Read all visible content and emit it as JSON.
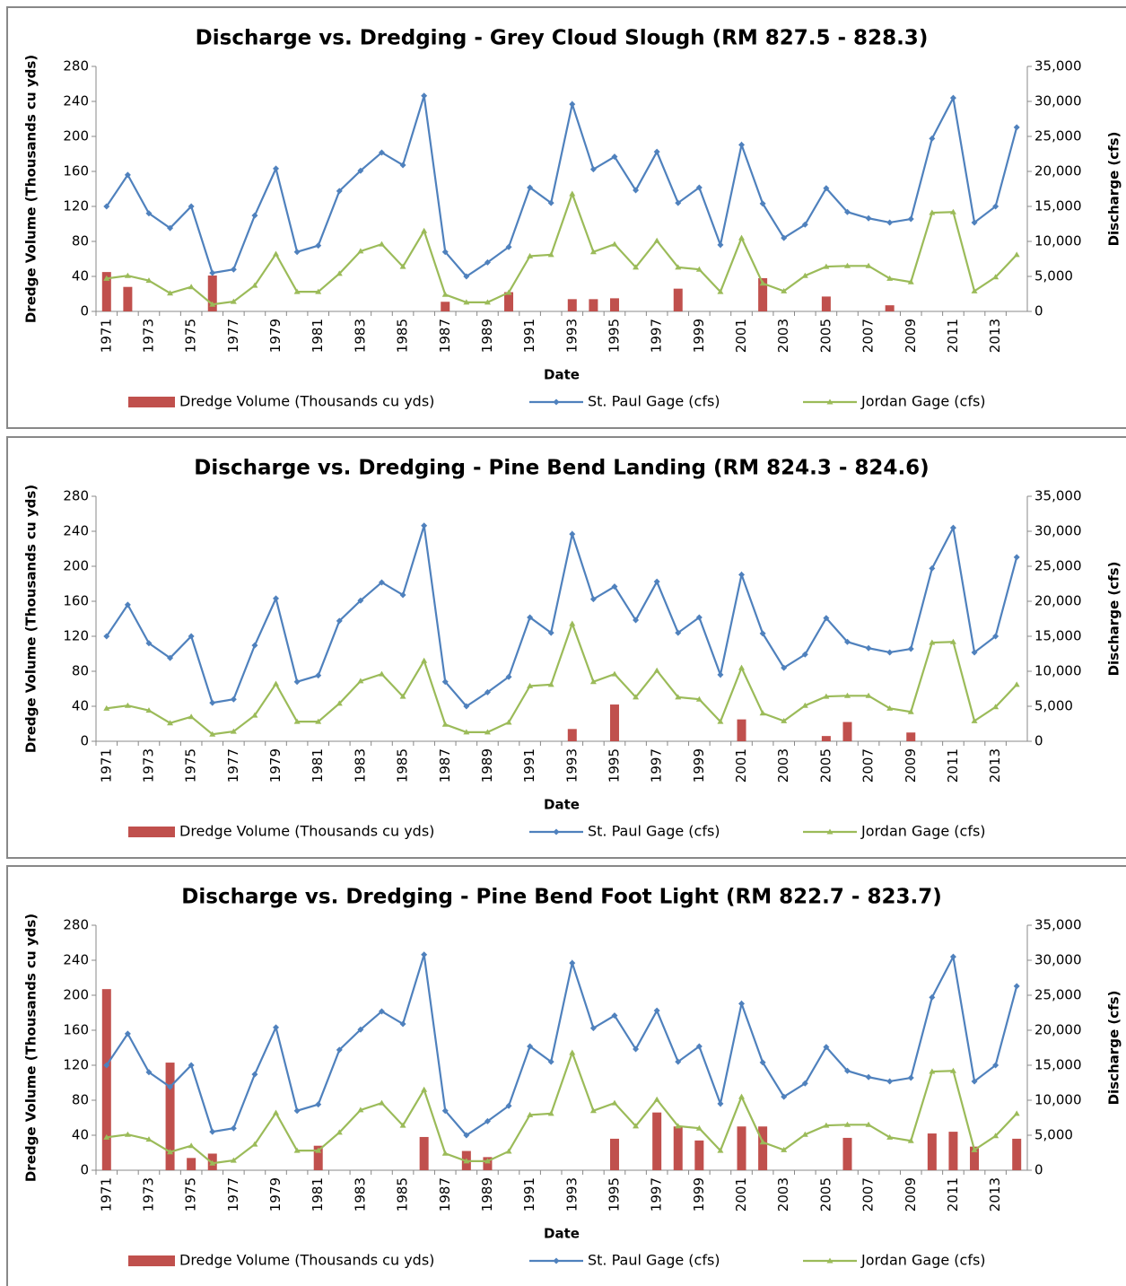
{
  "chart_data": [
    {
      "type": "combo",
      "title": "Discharge vs. Dredging - Grey Cloud Slough (RM 827.5 - 828.3)",
      "x_label": "Date",
      "y_label": "Dredge Volume (Thousands cu yds)",
      "y2_label": "Discharge (cfs)",
      "legend": "bottom",
      "grid": false,
      "categories": [
        "1971",
        null,
        "1973",
        null,
        "1975",
        null,
        "1977",
        null,
        "1979",
        null,
        "1981",
        null,
        "1983",
        null,
        "1985",
        null,
        "1987",
        null,
        "1989",
        null,
        "1991",
        null,
        "1993",
        null,
        "1995",
        null,
        "1997",
        null,
        "1999",
        null,
        "2001",
        null,
        "2003",
        null,
        "2005",
        null,
        "2007",
        null,
        "2009",
        null,
        "2011",
        null,
        "2013",
        null
      ],
      "ylim": [
        0,
        280
      ],
      "yticks": [
        0,
        40,
        80,
        120,
        160,
        200,
        240,
        280
      ],
      "y2lim": [
        0,
        35000
      ],
      "y2ticks": [
        0,
        {
          "value": 5000,
          "label": "5,000"
        },
        {
          "value": 10000,
          "label": "10,000"
        },
        {
          "value": 15000,
          "label": "15,000"
        },
        {
          "value": 20000,
          "label": "20,000"
        },
        {
          "value": 25000,
          "label": "25,000"
        },
        {
          "value": 30000,
          "label": "30,000"
        },
        {
          "value": 35000,
          "label": "35,000"
        }
      ],
      "series": [
        {
          "name": "Dredge Volume (Thousands cu yds)",
          "type": "bar",
          "color": "#c0504d",
          "values": [
            45,
            28,
            0,
            0,
            0,
            41,
            0,
            0,
            0,
            0,
            0,
            0,
            0,
            0,
            0,
            0,
            11,
            0,
            0,
            22,
            0,
            0,
            14,
            14,
            15,
            0,
            0,
            26,
            0,
            0,
            0,
            38,
            0,
            0,
            17,
            0,
            0,
            7,
            0,
            0,
            0,
            0,
            0,
            0
          ]
        },
        {
          "name": "St. Paul Gage (cfs)",
          "type": "line",
          "axis": "y2",
          "marker": "diamond",
          "color": "#4f81bd",
          "values": [
            15000,
            19500,
            14000,
            11900,
            15000,
            5500,
            6000,
            13700,
            20400,
            8500,
            9400,
            17200,
            20100,
            22700,
            20900,
            30800,
            8500,
            5000,
            7000,
            9200,
            17700,
            15500,
            29600,
            20300,
            22100,
            17300,
            22800,
            15500,
            17700,
            9500,
            23800,
            15400,
            10500,
            12400,
            17600,
            14200,
            13300,
            12700,
            13200,
            24700,
            30500,
            12700,
            15000,
            26300
          ]
        },
        {
          "name": "Jordan Gage (cfs)",
          "type": "line",
          "axis": "y2",
          "marker": "triangle",
          "color": "#9bbb59",
          "values": [
            4700,
            5100,
            4400,
            2600,
            3500,
            1000,
            1400,
            3700,
            8200,
            2800,
            2800,
            5400,
            8600,
            9600,
            6400,
            11500,
            2400,
            1300,
            1300,
            2700,
            7900,
            8100,
            16800,
            8500,
            9600,
            6300,
            10100,
            6300,
            6000,
            2800,
            10500,
            4000,
            2900,
            5100,
            6400,
            6500,
            6500,
            4700,
            4200,
            14100,
            14200,
            2900,
            4900,
            8100
          ]
        }
      ]
    },
    {
      "type": "combo",
      "title": "Discharge vs. Dredging - Pine Bend Landing (RM 824.3 - 824.6)",
      "x_label": "Date",
      "y_label": "Dredge Volume (Thousands cu yds)",
      "y2_label": "Discharge (cfs)",
      "legend": "bottom",
      "grid": false,
      "categories": [
        "1971",
        null,
        "1973",
        null,
        "1975",
        null,
        "1977",
        null,
        "1979",
        null,
        "1981",
        null,
        "1983",
        null,
        "1985",
        null,
        "1987",
        null,
        "1989",
        null,
        "1991",
        null,
        "1993",
        null,
        "1995",
        null,
        "1997",
        null,
        "1999",
        null,
        "2001",
        null,
        "2003",
        null,
        "2005",
        null,
        "2007",
        null,
        "2009",
        null,
        "2011",
        null,
        "2013",
        null
      ],
      "ylim": [
        0,
        280
      ],
      "yticks": [
        0,
        40,
        80,
        120,
        160,
        200,
        240,
        280
      ],
      "y2lim": [
        0,
        35000
      ],
      "y2ticks": [
        0,
        {
          "value": 5000,
          "label": "5,000"
        },
        {
          "value": 10000,
          "label": "10,000"
        },
        {
          "value": 15000,
          "label": "15,000"
        },
        {
          "value": 20000,
          "label": "20,000"
        },
        {
          "value": 25000,
          "label": "25,000"
        },
        {
          "value": 30000,
          "label": "30,000"
        },
        {
          "value": 35000,
          "label": "35,000"
        }
      ],
      "series": [
        {
          "name": "Dredge Volume (Thousands cu yds)",
          "type": "bar",
          "color": "#c0504d",
          "values": [
            0,
            0,
            0,
            0,
            0,
            0,
            0,
            0,
            0,
            0,
            0,
            0,
            0,
            0,
            0,
            0,
            0,
            0,
            0,
            0,
            0,
            0,
            14,
            0,
            42,
            0,
            0,
            0,
            0,
            0,
            25,
            0,
            0,
            0,
            6,
            22,
            0,
            0,
            10,
            0,
            0,
            0,
            0,
            0
          ]
        },
        {
          "name": "St. Paul Gage (cfs)",
          "type": "line",
          "axis": "y2",
          "marker": "diamond",
          "color": "#4f81bd",
          "values": [
            15000,
            19500,
            14000,
            11900,
            15000,
            5500,
            6000,
            13700,
            20400,
            8500,
            9400,
            17200,
            20100,
            22700,
            20900,
            30800,
            8500,
            5000,
            7000,
            9200,
            17700,
            15500,
            29600,
            20300,
            22100,
            17300,
            22800,
            15500,
            17700,
            9500,
            23800,
            15400,
            10500,
            12400,
            17600,
            14200,
            13300,
            12700,
            13200,
            24700,
            30500,
            12700,
            15000,
            26300
          ]
        },
        {
          "name": "Jordan Gage (cfs)",
          "type": "line",
          "axis": "y2",
          "marker": "triangle",
          "color": "#9bbb59",
          "values": [
            4700,
            5100,
            4400,
            2600,
            3500,
            1000,
            1400,
            3700,
            8200,
            2800,
            2800,
            5400,
            8600,
            9600,
            6400,
            11500,
            2400,
            1300,
            1300,
            2700,
            7900,
            8100,
            16800,
            8500,
            9600,
            6300,
            10100,
            6300,
            6000,
            2800,
            10500,
            4000,
            2900,
            5100,
            6400,
            6500,
            6500,
            4700,
            4200,
            14100,
            14200,
            2900,
            4900,
            8100
          ]
        }
      ]
    },
    {
      "type": "combo",
      "title": "Discharge vs. Dredging - Pine Bend Foot Light (RM 822.7 - 823.7)",
      "x_label": "Date",
      "y_label": "Dredge Volume (Thousands cu yds)",
      "y2_label": "Discharge (cfs)",
      "legend": "bottom",
      "grid": false,
      "categories": [
        "1971",
        null,
        "1973",
        null,
        "1975",
        null,
        "1977",
        null,
        "1979",
        null,
        "1981",
        null,
        "1983",
        null,
        "1985",
        null,
        "1987",
        null,
        "1989",
        null,
        "1991",
        null,
        "1993",
        null,
        "1995",
        null,
        "1997",
        null,
        "1999",
        null,
        "2001",
        null,
        "2003",
        null,
        "2005",
        null,
        "2007",
        null,
        "2009",
        null,
        "2011",
        null,
        "2013",
        null
      ],
      "ylim": [
        0,
        280
      ],
      "yticks": [
        0,
        40,
        80,
        120,
        160,
        200,
        240,
        280
      ],
      "y2lim": [
        0,
        35000
      ],
      "y2ticks": [
        0,
        {
          "value": 5000,
          "label": "5,000"
        },
        {
          "value": 10000,
          "label": "10,000"
        },
        {
          "value": 15000,
          "label": "15,000"
        },
        {
          "value": 20000,
          "label": "20,000"
        },
        {
          "value": 25000,
          "label": "25,000"
        },
        {
          "value": 30000,
          "label": "30,000"
        },
        {
          "value": 35000,
          "label": "35,000"
        }
      ],
      "series": [
        {
          "name": "Dredge Volume (Thousands cu yds)",
          "type": "bar",
          "color": "#c0504d",
          "values": [
            207,
            0,
            0,
            123,
            14,
            19,
            0,
            0,
            0,
            0,
            28,
            0,
            0,
            0,
            0,
            38,
            0,
            22,
            15,
            0,
            0,
            0,
            0,
            0,
            36,
            0,
            66,
            50,
            34,
            0,
            50,
            50,
            0,
            0,
            0,
            37,
            0,
            0,
            0,
            42,
            44,
            27,
            0,
            36
          ]
        },
        {
          "name": "St. Paul Gage (cfs)",
          "type": "line",
          "axis": "y2",
          "marker": "diamond",
          "color": "#4f81bd",
          "values": [
            15000,
            19500,
            14000,
            11900,
            15000,
            5500,
            6000,
            13700,
            20400,
            8500,
            9400,
            17200,
            20100,
            22700,
            20900,
            30800,
            8500,
            5000,
            7000,
            9200,
            17700,
            15500,
            29600,
            20300,
            22100,
            17300,
            22800,
            15500,
            17700,
            9500,
            23800,
            15400,
            10500,
            12400,
            17600,
            14200,
            13300,
            12700,
            13200,
            24700,
            30500,
            12700,
            15000,
            26300
          ]
        },
        {
          "name": "Jordan Gage (cfs)",
          "type": "line",
          "axis": "y2",
          "marker": "triangle",
          "color": "#9bbb59",
          "values": [
            4700,
            5100,
            4400,
            2600,
            3500,
            1000,
            1400,
            3700,
            8200,
            2800,
            2800,
            5400,
            8600,
            9600,
            6400,
            11500,
            2400,
            1300,
            1300,
            2700,
            7900,
            8100,
            16800,
            8500,
            9600,
            6300,
            10100,
            6300,
            6000,
            2800,
            10500,
            4000,
            2900,
            5100,
            6400,
            6500,
            6500,
            4700,
            4200,
            14100,
            14200,
            2900,
            4900,
            8100
          ]
        }
      ]
    }
  ]
}
